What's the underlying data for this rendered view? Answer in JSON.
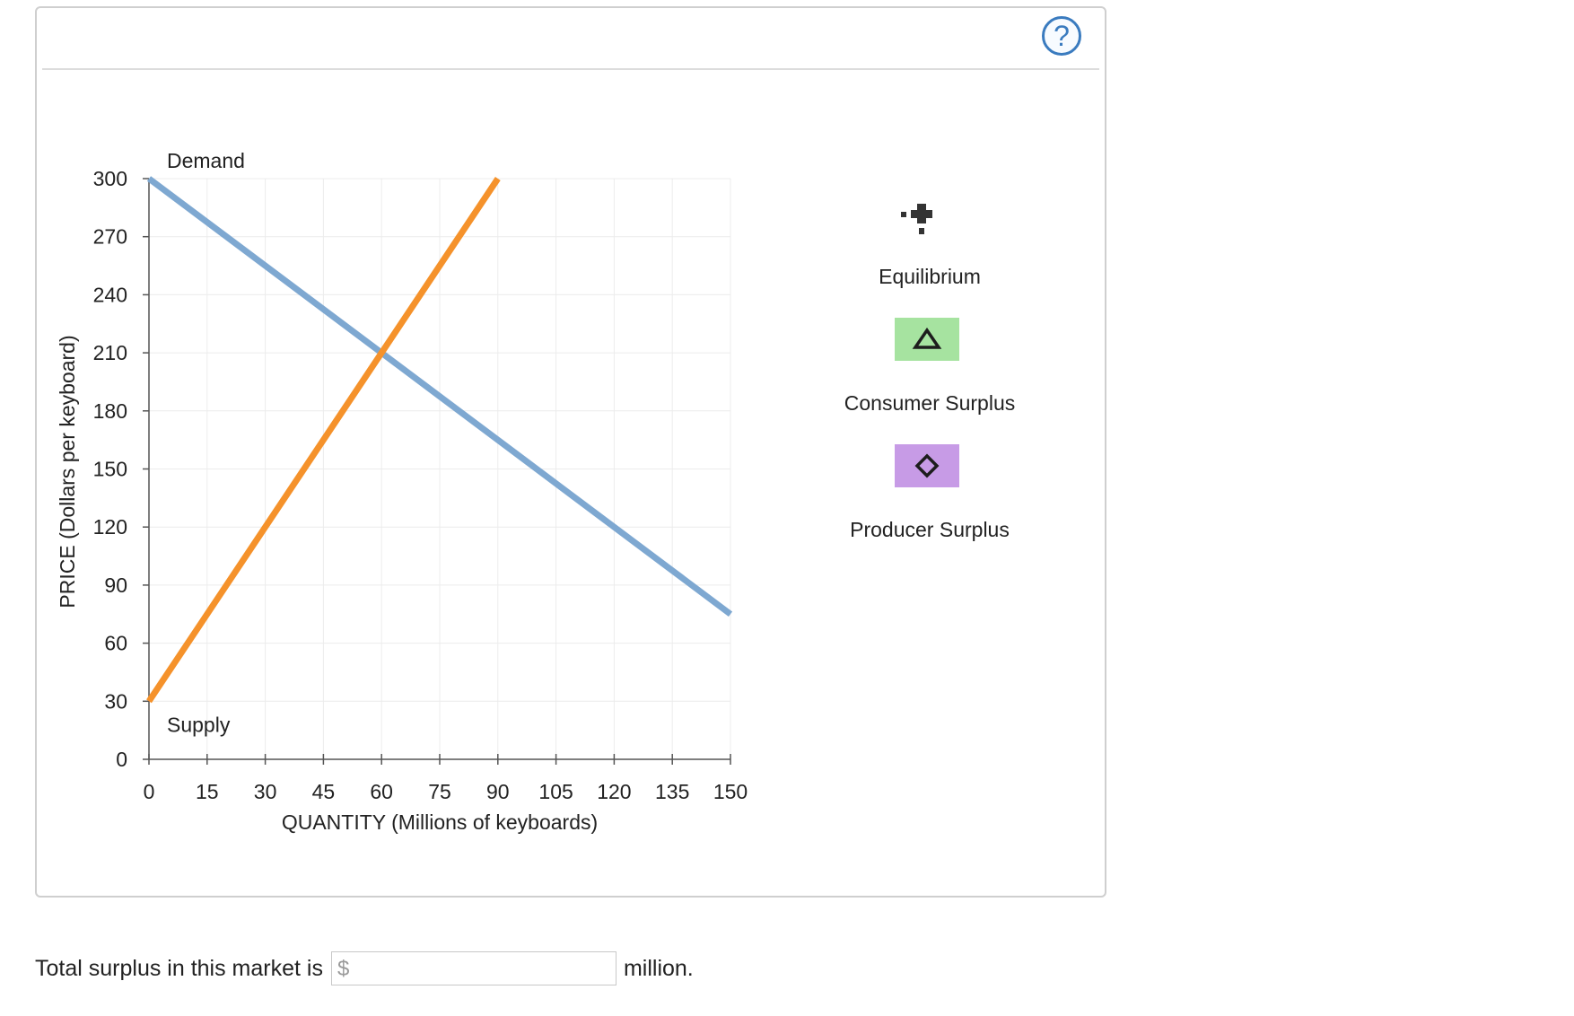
{
  "help": {
    "label": "?"
  },
  "chart_data": {
    "type": "line",
    "xlabel": "QUANTITY (Millions of keyboards)",
    "ylabel": "PRICE (Dollars per keyboard)",
    "xlim": [
      0,
      150
    ],
    "ylim": [
      0,
      300
    ],
    "x_ticks": [
      0,
      15,
      30,
      45,
      60,
      75,
      90,
      105,
      120,
      135,
      150
    ],
    "y_ticks": [
      0,
      30,
      60,
      90,
      120,
      150,
      180,
      210,
      240,
      270,
      300
    ],
    "grid": true,
    "series": [
      {
        "name": "Demand",
        "color": "#7ea8d1",
        "x": [
          0,
          150
        ],
        "y": [
          300,
          75
        ]
      },
      {
        "name": "Supply",
        "color": "#f5922b",
        "x": [
          0,
          90
        ],
        "y": [
          30,
          300
        ]
      }
    ]
  },
  "tools": {
    "equilibrium": {
      "label": "Equilibrium",
      "icon": "plus-marker-icon"
    },
    "consumer_surplus": {
      "label": "Consumer Surplus",
      "icon": "triangle-icon",
      "color": "#a6e3a0"
    },
    "producer_surplus": {
      "label": "Producer Surplus",
      "icon": "diamond-icon",
      "color": "#c79be6"
    }
  },
  "question": {
    "prefix": "Total surplus in this market is",
    "currency": "$",
    "value": "",
    "suffix": "million."
  }
}
